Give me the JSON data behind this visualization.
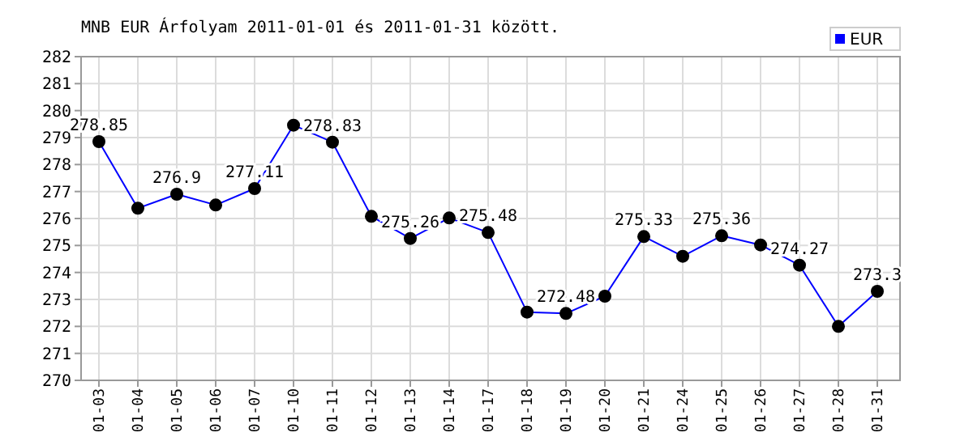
{
  "chart_data": {
    "type": "line",
    "title": "MNB EUR Árfolyam 2011-01-01 és 2011-01-31 között.",
    "categories": [
      "01-03",
      "01-04",
      "01-05",
      "01-06",
      "01-07",
      "01-10",
      "01-11",
      "01-12",
      "01-13",
      "01-14",
      "01-17",
      "01-18",
      "01-19",
      "01-20",
      "01-21",
      "01-24",
      "01-25",
      "01-26",
      "01-27",
      "01-28",
      "01-31"
    ],
    "series": [
      {
        "name": "EUR",
        "color": "#0000ff",
        "values": [
          278.85,
          276.38,
          276.9,
          276.5,
          277.11,
          279.46,
          278.83,
          276.08,
          275.26,
          276.02,
          275.48,
          272.53,
          272.48,
          273.12,
          275.33,
          274.6,
          275.36,
          275.02,
          274.27,
          272.0,
          273.3
        ],
        "value_labels": [
          "278.85",
          null,
          "276.9",
          null,
          "277.11",
          null,
          "278.83",
          null,
          "275.26",
          null,
          "275.48",
          null,
          "272.48",
          null,
          "275.33",
          null,
          "275.36",
          null,
          "274.27",
          null,
          "273.3"
        ]
      }
    ],
    "ylim": [
      270,
      282
    ],
    "yticks": [
      270,
      271,
      272,
      273,
      274,
      275,
      276,
      277,
      278,
      279,
      280,
      281,
      282
    ],
    "grid": true,
    "legend": "top right",
    "marker": "circle",
    "line_style": "solid"
  }
}
